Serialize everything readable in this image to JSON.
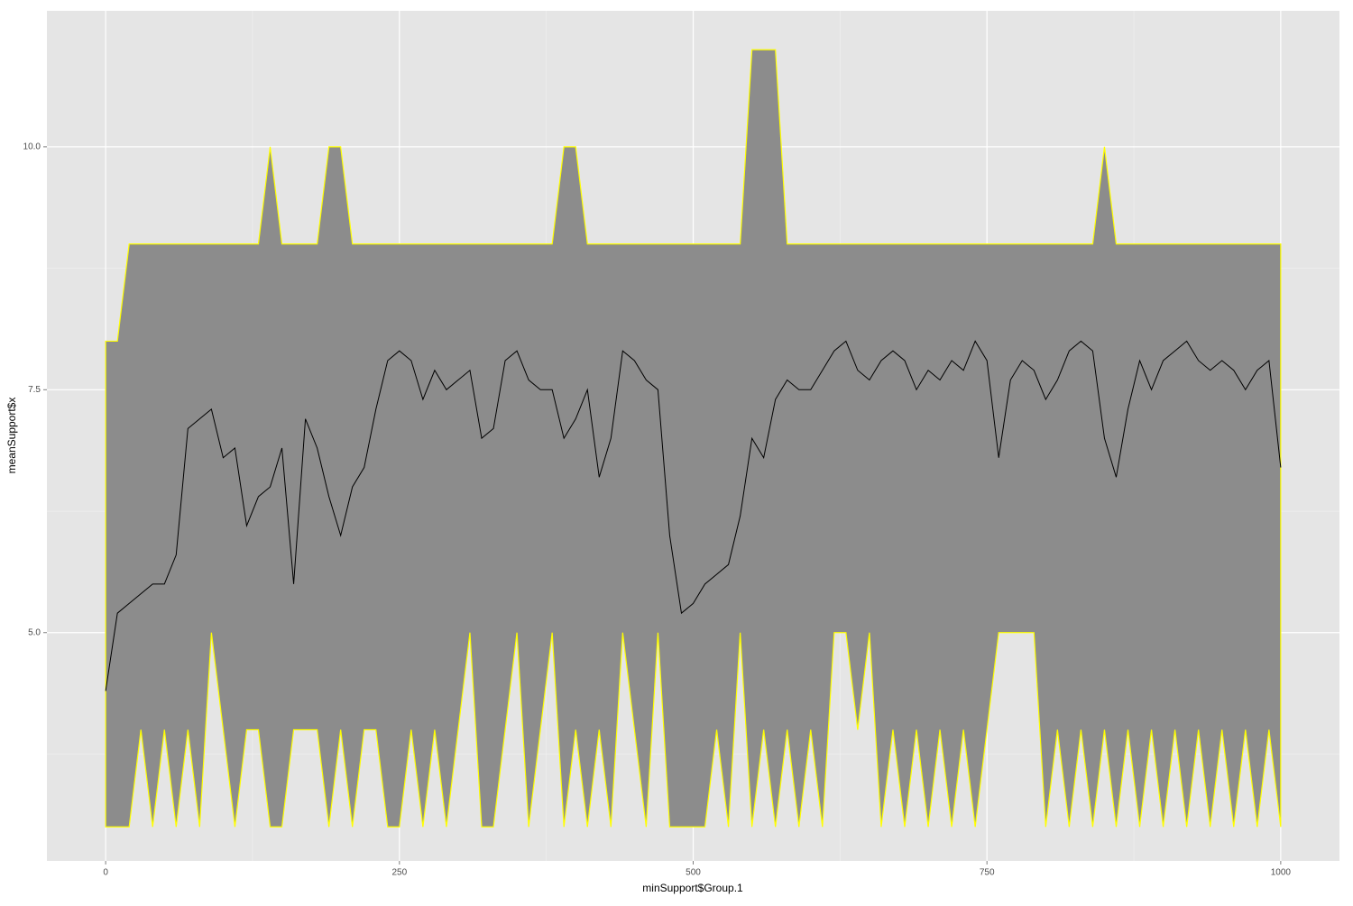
{
  "chart_data": {
    "type": "ribbon-line",
    "x_label": "minSupport$Group.1",
    "y_label": "meanSupport$x",
    "x": [
      0,
      10,
      20,
      30,
      40,
      50,
      60,
      70,
      80,
      90,
      100,
      110,
      120,
      130,
      140,
      150,
      160,
      170,
      180,
      190,
      200,
      210,
      220,
      230,
      240,
      250,
      260,
      270,
      280,
      290,
      300,
      310,
      320,
      330,
      340,
      350,
      360,
      370,
      380,
      390,
      400,
      410,
      420,
      430,
      440,
      450,
      460,
      470,
      480,
      490,
      500,
      510,
      520,
      530,
      540,
      550,
      560,
      570,
      580,
      590,
      600,
      610,
      620,
      630,
      640,
      650,
      660,
      670,
      680,
      690,
      700,
      710,
      720,
      730,
      740,
      750,
      760,
      770,
      780,
      790,
      800,
      810,
      820,
      830,
      840,
      850,
      860,
      870,
      880,
      890,
      900,
      910,
      920,
      930,
      940,
      950,
      960,
      970,
      980,
      990,
      1000
    ],
    "ymin": [
      3,
      3,
      3,
      4,
      3,
      4,
      3,
      4,
      3,
      5,
      4,
      3,
      4,
      4,
      3,
      3,
      4,
      4,
      4,
      3,
      4,
      3,
      4,
      4,
      3,
      3,
      4,
      3,
      4,
      3,
      4,
      5,
      3,
      3,
      4,
      5,
      3,
      4,
      5,
      3,
      4,
      3,
      4,
      3,
      5,
      4,
      3,
      5,
      3,
      3,
      3,
      3,
      4,
      3,
      5,
      3,
      4,
      3,
      4,
      3,
      4,
      3,
      5,
      5,
      4,
      5,
      3,
      4,
      3,
      4,
      3,
      4,
      3,
      4,
      3,
      4,
      5,
      5,
      5,
      5,
      3,
      4,
      3,
      4,
      3,
      4,
      3,
      4,
      3,
      4,
      3,
      4,
      3,
      4,
      3,
      4,
      3,
      4,
      3,
      4,
      3
    ],
    "ymax": [
      8,
      8,
      9,
      9,
      9,
      9,
      9,
      9,
      9,
      9,
      9,
      9,
      9,
      9,
      10,
      9,
      9,
      9,
      9,
      10,
      10,
      9,
      9,
      9,
      9,
      9,
      9,
      9,
      9,
      9,
      9,
      9,
      9,
      9,
      9,
      9,
      9,
      9,
      9,
      10,
      10,
      9,
      9,
      9,
      9,
      9,
      9,
      9,
      9,
      9,
      9,
      9,
      9,
      9,
      9,
      11,
      11,
      11,
      9,
      9,
      9,
      9,
      9,
      9,
      9,
      9,
      9,
      9,
      9,
      9,
      9,
      9,
      9,
      9,
      9,
      9,
      9,
      9,
      9,
      9,
      9,
      9,
      9,
      9,
      9,
      10,
      9,
      9,
      9,
      9,
      9,
      9,
      9,
      9,
      9,
      9,
      9,
      9,
      9,
      9,
      9
    ],
    "y": [
      4.4,
      5.2,
      5.3,
      5.4,
      5.5,
      5.5,
      5.8,
      7.1,
      7.2,
      7.3,
      6.8,
      6.9,
      6.1,
      6.4,
      6.5,
      6.9,
      5.5,
      7.2,
      6.9,
      6.4,
      6.0,
      6.5,
      6.7,
      7.3,
      7.8,
      7.9,
      7.8,
      7.4,
      7.7,
      7.5,
      7.6,
      7.7,
      7.0,
      7.1,
      7.8,
      7.9,
      7.6,
      7.5,
      7.5,
      7.0,
      7.2,
      7.5,
      6.6,
      7.0,
      7.9,
      7.8,
      7.6,
      7.5,
      6.0,
      5.2,
      5.3,
      5.5,
      5.6,
      5.7,
      6.2,
      7.0,
      6.8,
      7.4,
      7.6,
      7.5,
      7.5,
      7.7,
      7.9,
      8.0,
      7.7,
      7.6,
      7.8,
      7.9,
      7.8,
      7.5,
      7.7,
      7.6,
      7.8,
      7.7,
      8.0,
      7.8,
      6.8,
      7.6,
      7.8,
      7.7,
      7.4,
      7.6,
      7.9,
      8.0,
      7.9,
      7.0,
      6.6,
      7.3,
      7.8,
      7.5,
      7.8,
      7.9,
      8.0,
      7.8,
      7.7,
      7.8,
      7.7,
      7.5,
      7.7,
      7.8,
      6.7
    ],
    "fill": "#8c8c8c",
    "outline": "#ffff00",
    "line_color": "#000000",
    "xlim": [
      -50,
      1050
    ],
    "ylim": [
      2.65,
      11.4
    ],
    "xticks": [
      0,
      250,
      500,
      750,
      1000
    ],
    "yticks": [
      {
        "value": 5,
        "label": "5.0"
      },
      {
        "value": 7.5,
        "label": "7.5"
      },
      {
        "value": 10,
        "label": "10.0"
      }
    ],
    "xminor": [
      125,
      375,
      625,
      875
    ],
    "yminor": [
      3.75,
      6.25,
      8.75
    ],
    "grid": true
  }
}
